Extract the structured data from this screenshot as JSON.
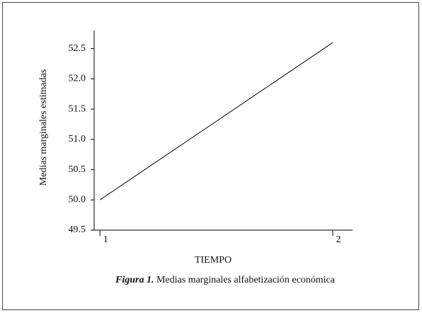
{
  "chart_data": {
    "type": "line",
    "y_label": "Medias marginales estimadas",
    "x_label": "TIEMPO",
    "caption_label": "Figura 1.",
    "caption_text": "Medias marginales alfabetización económica",
    "x": [
      1,
      2
    ],
    "series": [
      {
        "name": "Medias marginales",
        "color": "#000000",
        "values": [
          50.0,
          52.6
        ]
      }
    ],
    "xlim": [
      0.975,
      2.085
    ],
    "xticks": [
      1,
      2
    ],
    "ylim": [
      49.5,
      52.8
    ],
    "yticks": [
      {
        "value": 49.5,
        "label": "49.5"
      },
      {
        "value": 50,
        "label": "50.0"
      },
      50.5,
      {
        "value": 51,
        "label": "51.0"
      },
      51.5,
      {
        "value": 52,
        "label": "52.0"
      },
      52.5
    ],
    "grid": false
  }
}
